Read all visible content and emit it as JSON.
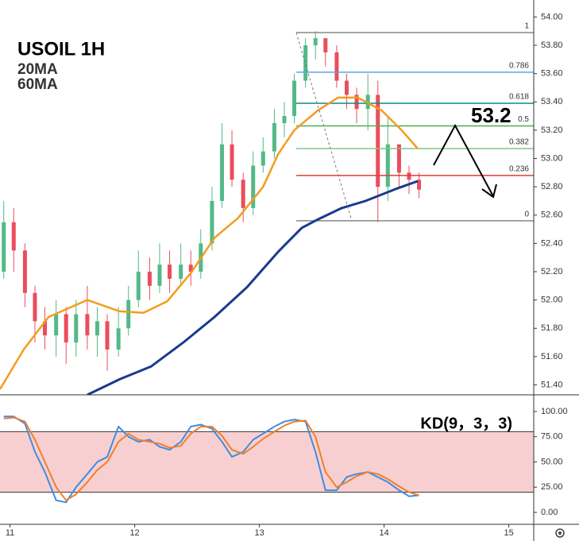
{
  "chart_data": [
    {
      "type": "candlestick",
      "title": "USOIL 1H",
      "x": [
        10.95,
        11.03,
        11.12,
        11.2,
        11.28,
        11.37,
        11.45,
        11.53,
        11.62,
        11.7,
        11.78,
        11.87,
        11.95,
        12.03,
        12.12,
        12.2,
        12.28,
        12.37,
        12.45,
        12.53,
        12.62,
        12.7,
        12.78,
        12.87,
        12.95,
        13.03,
        13.12,
        13.2,
        13.28,
        13.37,
        13.45,
        13.53,
        13.62,
        13.7,
        13.78,
        13.87,
        13.95,
        14.03,
        14.12,
        14.2,
        14.28
      ],
      "open": [
        52.2,
        52.55,
        52.35,
        52.05,
        51.85,
        51.75,
        51.9,
        51.7,
        51.9,
        51.75,
        51.85,
        51.65,
        51.8,
        52.0,
        52.2,
        52.1,
        52.25,
        52.15,
        52.25,
        52.2,
        52.4,
        52.7,
        53.1,
        52.85,
        52.65,
        52.95,
        53.05,
        53.25,
        53.3,
        53.55,
        53.8,
        53.85,
        53.75,
        53.55,
        53.45,
        53.35,
        53.45,
        52.8,
        53.1,
        52.9,
        52.85
      ],
      "high": [
        52.7,
        52.65,
        52.4,
        52.1,
        51.95,
        52.0,
        51.95,
        52.0,
        52.1,
        51.95,
        51.9,
        51.95,
        52.1,
        52.35,
        52.3,
        52.4,
        52.35,
        52.4,
        52.35,
        52.5,
        52.8,
        53.25,
        53.2,
        52.9,
        53.05,
        53.15,
        53.35,
        53.4,
        53.6,
        53.85,
        53.9,
        53.85,
        53.8,
        53.6,
        53.5,
        53.6,
        53.55,
        53.3,
        53.1,
        52.95,
        52.9
      ],
      "low": [
        52.15,
        52.2,
        51.95,
        51.7,
        51.65,
        51.6,
        51.55,
        51.6,
        51.65,
        51.6,
        51.5,
        51.6,
        51.75,
        51.95,
        52.0,
        52.05,
        52.05,
        52.1,
        52.1,
        52.15,
        52.35,
        52.65,
        52.8,
        52.55,
        52.6,
        52.9,
        53.0,
        53.15,
        53.25,
        53.5,
        53.7,
        53.65,
        53.5,
        53.35,
        53.25,
        53.2,
        52.55,
        52.7,
        52.8,
        52.75,
        52.72
      ],
      "close": [
        52.55,
        52.35,
        52.05,
        51.85,
        51.75,
        51.9,
        51.7,
        51.9,
        51.75,
        51.85,
        51.65,
        51.8,
        52.0,
        52.2,
        52.1,
        52.25,
        52.15,
        52.25,
        52.2,
        52.4,
        52.7,
        53.1,
        52.85,
        52.65,
        52.95,
        53.05,
        53.25,
        53.3,
        53.55,
        53.8,
        53.85,
        53.75,
        53.55,
        53.45,
        53.35,
        53.45,
        52.8,
        53.1,
        52.9,
        52.85,
        52.78
      ],
      "up_color": "#53b987",
      "down_color": "#eb4d5c",
      "series": [
        {
          "name": "20MA",
          "color": "#f39c1f",
          "x": [
            10.92,
            11.11,
            11.31,
            11.62,
            11.88,
            12.07,
            12.26,
            12.45,
            12.64,
            12.83,
            13.03,
            13.15,
            13.28,
            13.47,
            13.63,
            13.79,
            13.98,
            14.14,
            14.27
          ],
          "values": [
            51.37,
            51.65,
            51.88,
            52.0,
            51.92,
            51.91,
            51.99,
            52.19,
            52.44,
            52.58,
            52.8,
            53.03,
            53.2,
            53.34,
            53.43,
            53.43,
            53.34,
            53.2,
            53.07
          ]
        },
        {
          "name": "60MA",
          "color": "#1a3a8f",
          "x": [
            11.62,
            11.88,
            12.13,
            12.39,
            12.64,
            12.9,
            13.15,
            13.34,
            13.47,
            13.66,
            13.85,
            14.11,
            14.27
          ],
          "values": [
            51.33,
            51.44,
            51.53,
            51.7,
            51.88,
            52.09,
            52.34,
            52.51,
            52.57,
            52.65,
            52.7,
            52.79,
            52.84
          ]
        }
      ],
      "legend_colors": [
        "#f39c1f",
        "#2e8de0"
      ],
      "fib_levels": [
        {
          "level": 1,
          "price": 53.89,
          "color": "#888888"
        },
        {
          "level": 0.786,
          "price": 53.61,
          "color": "#5ba9e0"
        },
        {
          "level": 0.618,
          "price": 53.39,
          "color": "#0d8a86"
        },
        {
          "level": 0.5,
          "price": 53.23,
          "color": "#4caf50"
        },
        {
          "level": 0.382,
          "price": 53.07,
          "color": "#81c784"
        },
        {
          "level": 0.236,
          "price": 52.88,
          "color": "#e53935"
        },
        {
          "level": 0,
          "price": 52.56,
          "color": "#888888"
        }
      ],
      "annotation": "53.2",
      "xlim": [
        10.92,
        15.2
      ],
      "ylim": [
        51.33,
        54.12
      ],
      "yticks": [
        {
          "value": 51.4,
          "label": "51.40"
        },
        {
          "value": 51.6,
          "label": "51.60"
        },
        {
          "value": 51.8,
          "label": "51.80"
        },
        {
          "value": 52.0,
          "label": "52.00"
        },
        {
          "value": 52.2,
          "label": "52.20"
        },
        {
          "value": 52.4,
          "label": "52.40"
        },
        {
          "value": 52.6,
          "label": "52.60"
        },
        {
          "value": 52.8,
          "label": "52.80"
        },
        {
          "value": 53.0,
          "label": "53.00"
        },
        {
          "value": 53.2,
          "label": "53.20"
        },
        {
          "value": 53.4,
          "label": "53.40"
        },
        {
          "value": 53.6,
          "label": "53.60"
        },
        {
          "value": 53.8,
          "label": "53.80"
        },
        {
          "value": 54.0,
          "label": "54.00"
        }
      ]
    },
    {
      "type": "line",
      "title": "KD(9，3，3)",
      "x": [
        10.95,
        11.03,
        11.12,
        11.2,
        11.28,
        11.37,
        11.45,
        11.53,
        11.62,
        11.7,
        11.78,
        11.87,
        11.95,
        12.03,
        12.12,
        12.2,
        12.28,
        12.37,
        12.45,
        12.53,
        12.62,
        12.7,
        12.78,
        12.87,
        12.95,
        13.03,
        13.12,
        13.2,
        13.28,
        13.37,
        13.45,
        13.53,
        13.62,
        13.7,
        13.78,
        13.87,
        13.95,
        14.03,
        14.12,
        14.2,
        14.28
      ],
      "series": [
        {
          "color": "#3d8ee0",
          "values": [
            95,
            95,
            88,
            60,
            40,
            12,
            10,
            25,
            38,
            50,
            55,
            85,
            75,
            70,
            72,
            65,
            62,
            70,
            85,
            87,
            83,
            70,
            55,
            60,
            72,
            78,
            85,
            90,
            92,
            90,
            60,
            22,
            22,
            35,
            38,
            40,
            35,
            30,
            22,
            16,
            17
          ]
        },
        {
          "color": "#f07f2a",
          "values": [
            93,
            94,
            90,
            72,
            50,
            25,
            12,
            18,
            30,
            42,
            50,
            70,
            78,
            72,
            70,
            68,
            64,
            66,
            78,
            85,
            85,
            76,
            62,
            58,
            65,
            73,
            80,
            86,
            90,
            91,
            75,
            40,
            25,
            30,
            36,
            40,
            38,
            33,
            26,
            20,
            17
          ]
        }
      ],
      "band": [
        20,
        80
      ],
      "band_color": "#f8cfd0",
      "xlim": [
        10.92,
        15.2
      ],
      "xticks": [
        11,
        12,
        13,
        14,
        15
      ],
      "ylim": [
        -11.8,
        116.5
      ],
      "yticks": [
        {
          "value": 0,
          "label": "0.00"
        },
        {
          "value": 25,
          "label": "25.00"
        },
        {
          "value": 50,
          "label": "50.00"
        },
        {
          "value": 75,
          "label": "75.00"
        },
        {
          "value": 100,
          "label": "100.00"
        }
      ]
    }
  ]
}
